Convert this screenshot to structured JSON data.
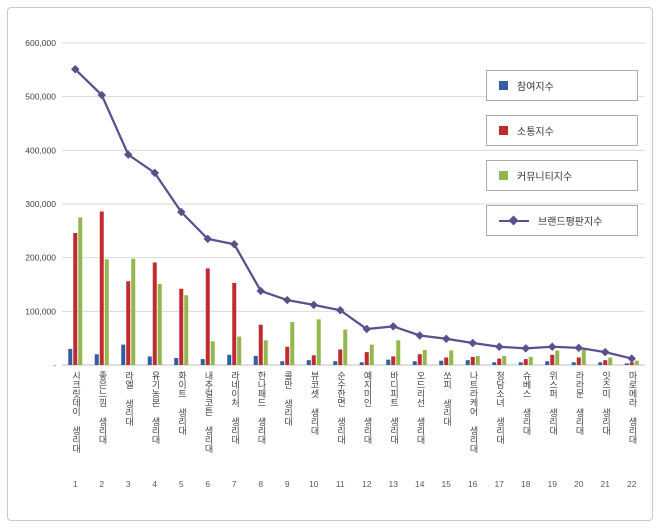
{
  "frame": {
    "background": "#ffffff",
    "border_color": "#c9c9c9"
  },
  "legend": {
    "items": [
      {
        "label": "참여지수",
        "color": "#2E5FA3",
        "type": "bar"
      },
      {
        "label": "소통지수",
        "color": "#BF2B2F",
        "type": "bar"
      },
      {
        "label": "커뮤니티지수",
        "color": "#94B64E",
        "type": "bar"
      },
      {
        "label": "브랜드평판지수",
        "color": "#5D4E8E",
        "type": "line"
      }
    ]
  },
  "chart_data": {
    "type": "bar",
    "title": "",
    "xlabel": "",
    "ylabel": "",
    "grid": true,
    "legend_position": "top-right",
    "categories": [
      "시크릿데이 생리대",
      "좋은느낌 생리대",
      "라엘 생리대",
      "유기농본 생리대",
      "화이트 생리대",
      "내추럴코튼 생리대",
      "라네이처 생리대",
      "한나패드 생리대",
      "콜만 생리대",
      "뷰코셋 생리대",
      "순수한면 생리대",
      "예지미인 생리대",
      "바디피트 생리대",
      "오드리선 생리대",
      "쏘피 생리대",
      "나트라케어 생리대",
      "청담소녀 생리대",
      "슈베스 생리대",
      "위스퍼 생리대",
      "라라문 생리대",
      "잇츠미 생리대",
      "마로메라 생리대"
    ],
    "category_numbers": [
      "1",
      "2",
      "3",
      "4",
      "5",
      "6",
      "7",
      "8",
      "9",
      "10",
      "11",
      "12",
      "13",
      "14",
      "15",
      "16",
      "17",
      "18",
      "19",
      "20",
      "21",
      "22"
    ],
    "series": [
      {
        "name": "참여지수",
        "type": "bar",
        "color": "#2E5FA3",
        "values": [
          30000,
          20000,
          38000,
          16000,
          13000,
          11000,
          19000,
          17000,
          7000,
          9000,
          7000,
          5000,
          10000,
          7000,
          8000,
          9000,
          5000,
          5000,
          7000,
          5000,
          5000,
          3000
        ]
      },
      {
        "name": "소통지수",
        "type": "bar",
        "color": "#BF2B2F",
        "values": [
          246000,
          286000,
          156000,
          191000,
          142000,
          180000,
          153000,
          75000,
          34000,
          18000,
          29000,
          24000,
          16000,
          20000,
          14000,
          15000,
          12000,
          11000,
          19000,
          14000,
          9000,
          5000
        ]
      },
      {
        "name": "커뮤니티지수",
        "type": "bar",
        "color": "#94B64E",
        "values": [
          275000,
          197000,
          198000,
          151000,
          130000,
          44000,
          53000,
          46000,
          80000,
          85000,
          66000,
          38000,
          46000,
          28000,
          27000,
          17000,
          17000,
          15000,
          27000,
          29000,
          14000,
          8000
        ]
      },
      {
        "name": "브랜드평판지수",
        "type": "line",
        "color": "#5D4E8E",
        "marker": "diamond",
        "values": [
          551000,
          503000,
          392000,
          358000,
          285000,
          235000,
          225000,
          138000,
          121000,
          112000,
          102000,
          67000,
          72000,
          55000,
          49000,
          41000,
          34000,
          31000,
          34000,
          32000,
          24000,
          12000
        ]
      }
    ],
    "y_axis": {
      "min": 0,
      "max": 600000,
      "tick_interval": 100000,
      "tick_labels": [
        "-",
        "100,000",
        "200,000",
        "300,000",
        "400,000",
        "500,000",
        "600,000"
      ]
    }
  }
}
